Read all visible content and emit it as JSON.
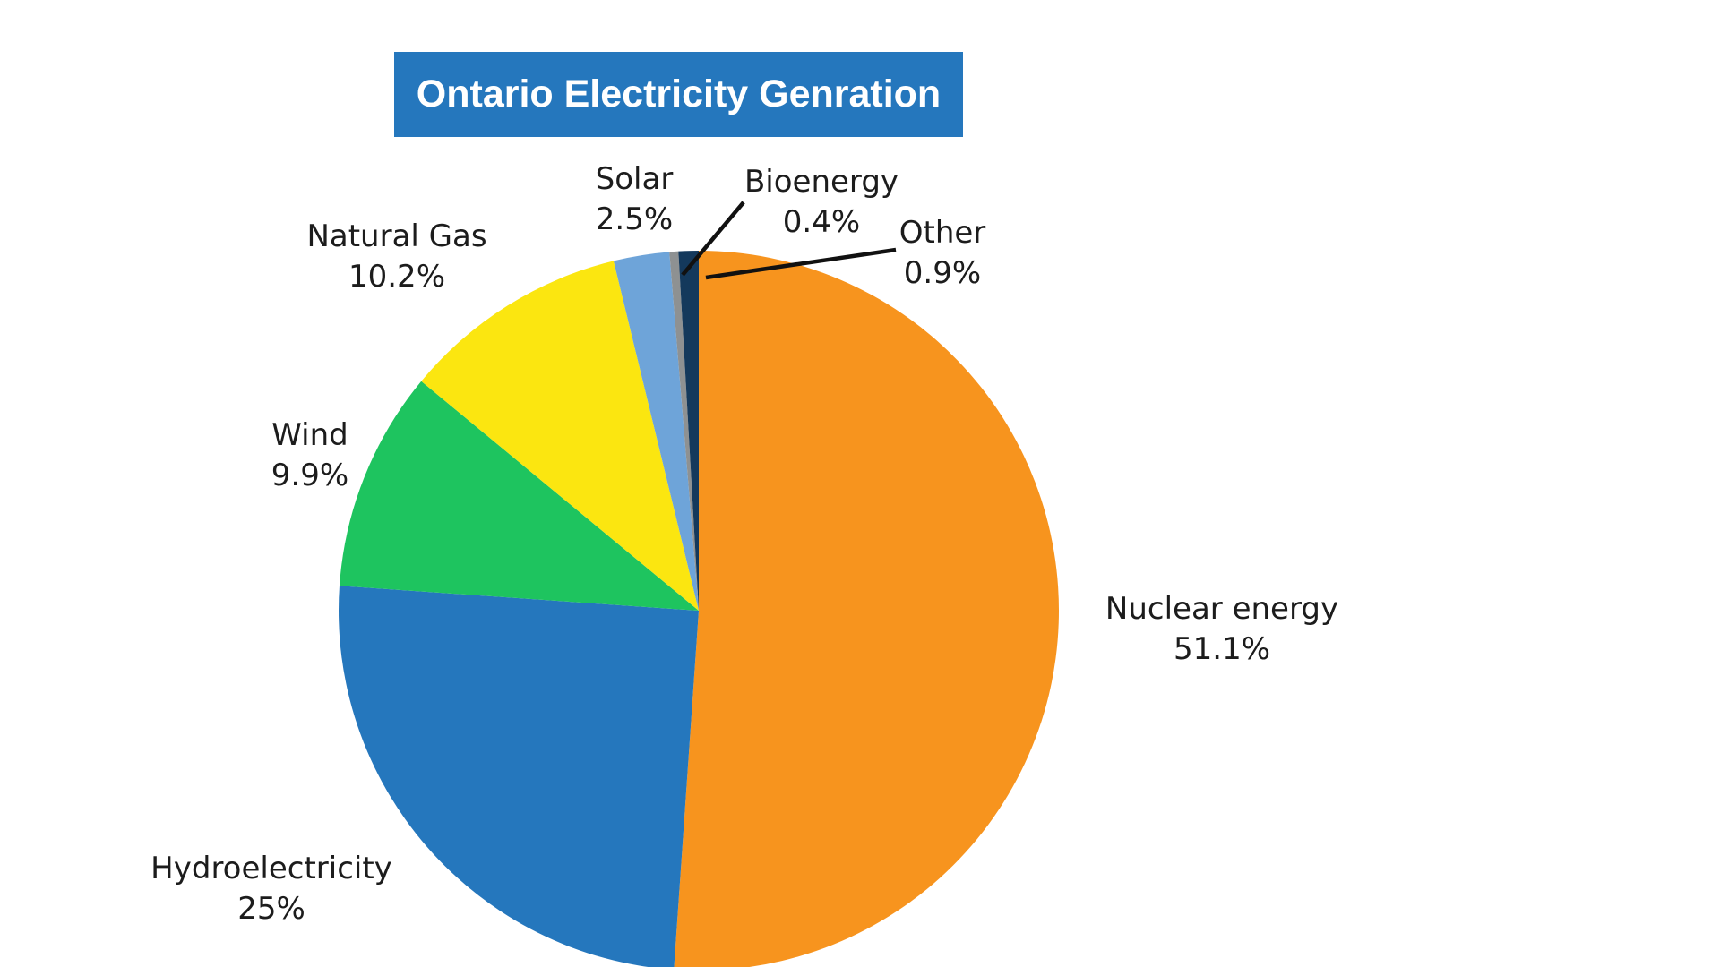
{
  "title": {
    "text": "Ontario Electricity Genration",
    "bg_color": "#2577BD",
    "text_color": "#FFFFFF"
  },
  "chart_data": {
    "type": "pie",
    "title": "Ontario Electricity Genration",
    "start_angle": "12 o'clock",
    "direction": "clockwise",
    "legend_position": "none (direct labels around pie)",
    "slices": [
      {
        "name": "Nuclear energy",
        "value": 51.1,
        "label": "51.1%",
        "color": "#F7941E"
      },
      {
        "name": "Hydroelectricity",
        "value": 25,
        "label": "25%",
        "color": "#2577BD"
      },
      {
        "name": "Wind",
        "value": 9.9,
        "label": "9.9%",
        "color": "#1EC45F"
      },
      {
        "name": "Natural Gas",
        "value": 10.2,
        "label": "10.2%",
        "color": "#FBE610"
      },
      {
        "name": "Solar",
        "value": 2.5,
        "label": "2.5%",
        "color": "#6EA4D9"
      },
      {
        "name": "Bioenergy",
        "value": 0.4,
        "label": "0.4%",
        "color": "#8E9192"
      },
      {
        "name": "Other",
        "value": 0.9,
        "label": "0.9%",
        "color": "#14395C"
      }
    ],
    "leader_line_color": "#111111"
  }
}
